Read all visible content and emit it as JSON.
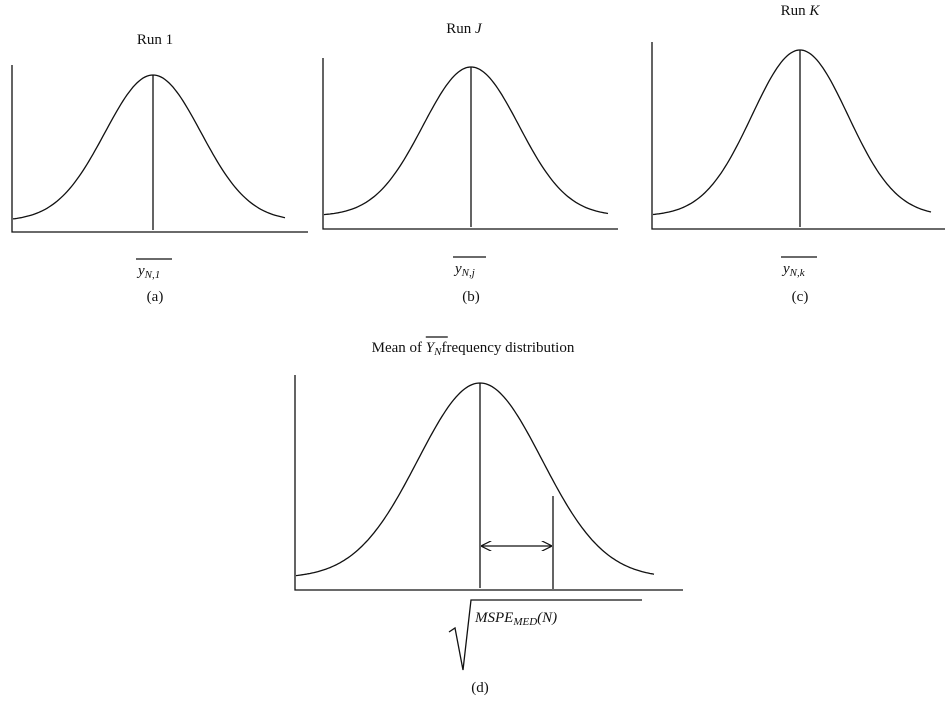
{
  "panels": [
    {
      "title": {
        "text": "Run",
        "index": "1"
      },
      "label": {
        "symbol": "y",
        "subscript": "N,1"
      },
      "caption": "(a)"
    },
    {
      "title": {
        "text": "Run",
        "index": "J"
      },
      "label": {
        "symbol": "y",
        "subscript": "N,j"
      },
      "caption": "(b)"
    },
    {
      "title": {
        "text": "Run",
        "index": "K"
      },
      "label": {
        "symbol": "y",
        "subscript": "N,k"
      },
      "caption": "(c)"
    }
  ],
  "summary": {
    "title": {
      "before": "Mean of",
      "symbol": "Y",
      "subscript": "N",
      "after": "frequency distribution"
    },
    "label": {
      "symbol": "MSPE",
      "subscript": "MED",
      "argument": "(N)"
    },
    "caption": "(d)"
  }
}
